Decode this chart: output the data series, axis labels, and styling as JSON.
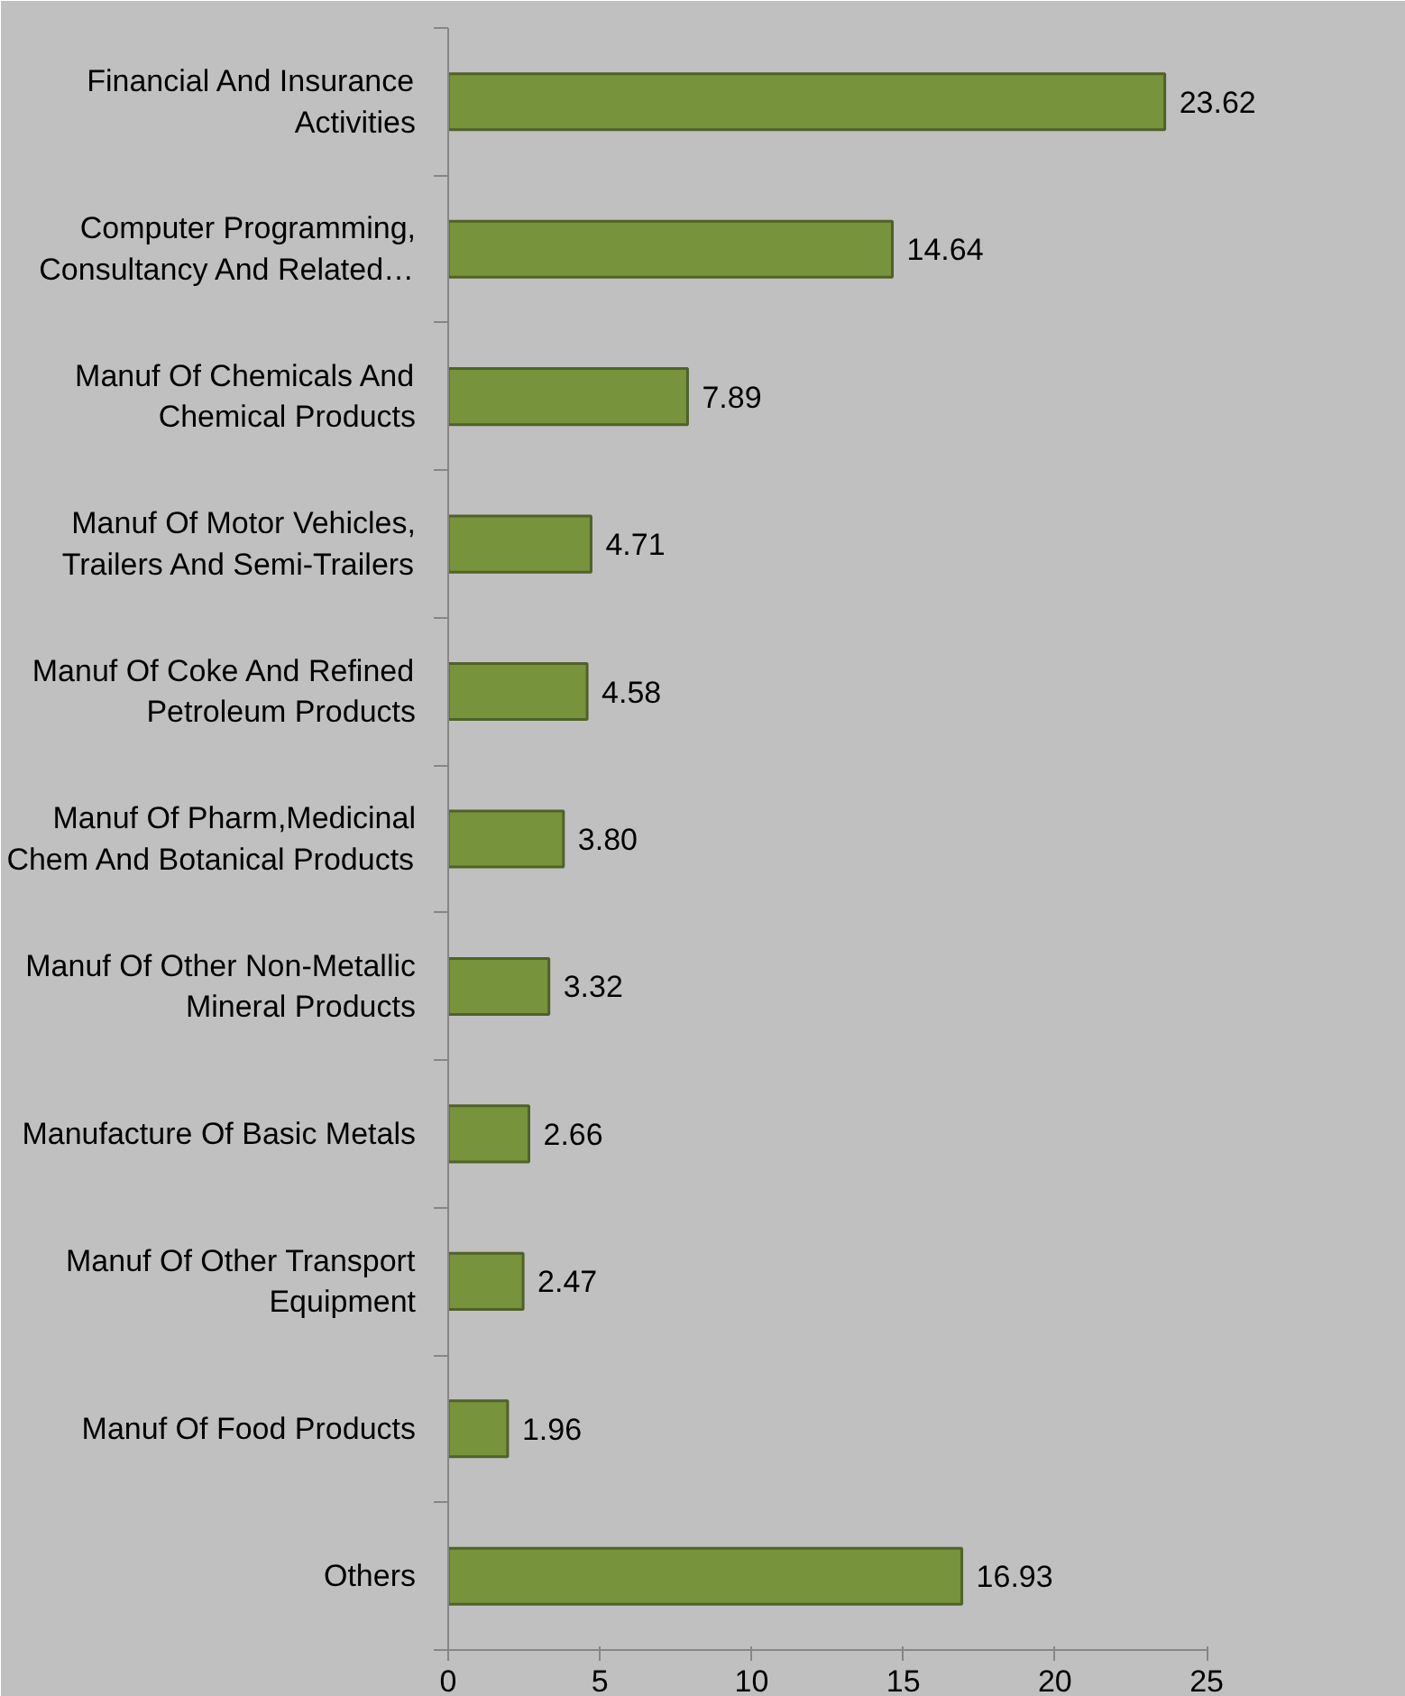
{
  "chart_data": {
    "type": "bar",
    "orientation": "horizontal",
    "categories": [
      "Financial And Insurance\nActivities",
      "Computer Programming,\nConsultancy And Related…",
      "Manuf Of Chemicals And\nChemical Products",
      "Manuf Of Motor Vehicles,\nTrailers And Semi-Trailers",
      "Manuf Of Coke And Refined\nPetroleum Products",
      "Manuf Of Pharm,Medicinal\nChem And Botanical Products",
      "Manuf Of Other Non-Metallic\nMineral Products",
      "Manufacture Of Basic Metals",
      "Manuf Of Other Transport\nEquipment",
      "Manuf Of Food Products",
      "Others"
    ],
    "values": [
      23.62,
      14.64,
      7.89,
      4.71,
      4.58,
      3.8,
      3.32,
      2.66,
      2.47,
      1.96,
      16.93
    ],
    "value_labels": [
      "23.62",
      "14.64",
      "7.89",
      "4.71",
      "4.58",
      "3.80",
      "3.32",
      "2.66",
      "2.47",
      "1.96",
      "16.93"
    ],
    "color": "#77933c",
    "xlim": [
      0,
      25
    ],
    "xticks": [
      0,
      5,
      10,
      15,
      20,
      25
    ],
    "grid": false
  }
}
